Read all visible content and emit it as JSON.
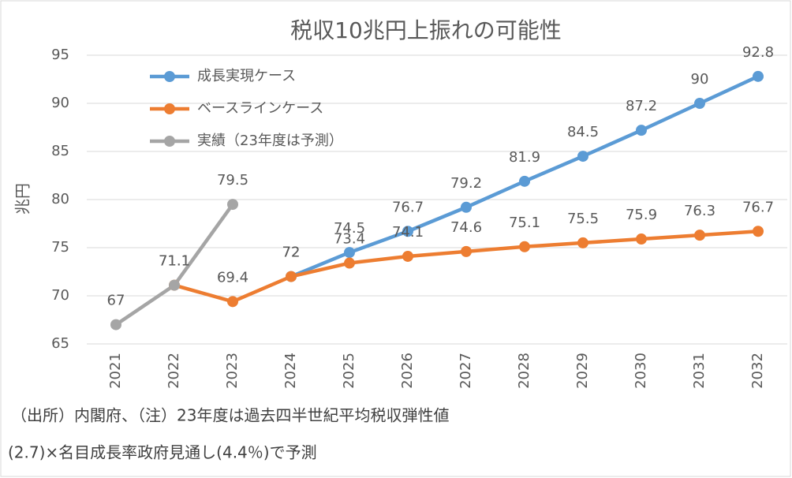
{
  "chart_data": {
    "type": "line",
    "title": "税収10兆円上振れの可能性",
    "y_label": "兆円",
    "categories": [
      "2021",
      "2022",
      "2023",
      "2024",
      "2025",
      "2026",
      "2027",
      "2028",
      "2029",
      "2030",
      "2031",
      "2032"
    ],
    "series": [
      {
        "name": "成長実現ケース",
        "color": "#5b9bd5",
        "values": [
          null,
          null,
          null,
          72,
          74.5,
          76.7,
          79.2,
          81.9,
          84.5,
          87.2,
          90,
          92.8
        ]
      },
      {
        "name": "ベースラインケース",
        "color": "#ed7d31",
        "values": [
          null,
          71.1,
          69.4,
          72,
          73.4,
          74.1,
          74.6,
          75.1,
          75.5,
          75.9,
          76.3,
          76.7
        ]
      },
      {
        "name": "実績（23年度は予測）",
        "color": "#a5a5a5",
        "values": [
          67,
          71.1,
          79.5,
          null,
          null,
          null,
          null,
          null,
          null,
          null,
          null,
          null
        ]
      }
    ],
    "ylim": [
      65,
      95
    ],
    "yticks": [
      65,
      70,
      75,
      80,
      85,
      90,
      95
    ],
    "grid": true,
    "legend": "top-left",
    "notes": [
      "（出所）内閣府、（注）23年度は過去四半世紀平均税収弾性値",
      "(2.7)×名目成長率政府見通し(4.4％)で予測"
    ]
  }
}
